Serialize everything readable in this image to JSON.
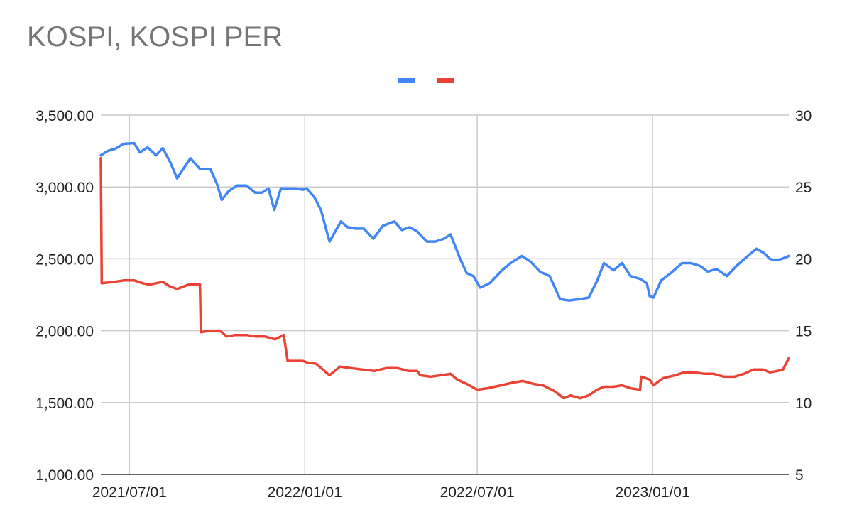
{
  "chart_data": {
    "type": "line",
    "title": "KOSPI, KOSPI PER",
    "legend_position": "top",
    "grid": true,
    "x_axis": {
      "type": "date",
      "range": [
        "2021-06-01",
        "2023-05-24"
      ],
      "tick_labels": [
        "2021/07/01",
        "2022/01/01",
        "2022/07/01",
        "2023/01/01"
      ],
      "gridlines": [
        "2021-07-01",
        "2022-01-01",
        "2022-07-01",
        "2023-01-01"
      ]
    },
    "y_axis_left": {
      "range": [
        1000,
        3500
      ],
      "tick_labels": [
        "1,000.00",
        "1,500.00",
        "2,000.00",
        "2,500.00",
        "3,000.00",
        "3,500.00"
      ]
    },
    "y_axis_right": {
      "range": [
        5,
        30
      ],
      "tick_labels": [
        "5",
        "10",
        "15",
        "20",
        "25",
        "30"
      ]
    },
    "series": [
      {
        "axis": "left",
        "color": "#4285f4",
        "points": [
          [
            "2021-06-01",
            3220
          ],
          [
            "2021-06-08",
            3250
          ],
          [
            "2021-06-16",
            3265
          ],
          [
            "2021-06-25",
            3300
          ],
          [
            "2021-07-06",
            3305
          ],
          [
            "2021-07-12",
            3240
          ],
          [
            "2021-07-20",
            3275
          ],
          [
            "2021-07-29",
            3220
          ],
          [
            "2021-08-05",
            3270
          ],
          [
            "2021-08-13",
            3170
          ],
          [
            "2021-08-20",
            3060
          ],
          [
            "2021-08-27",
            3130
          ],
          [
            "2021-09-03",
            3200
          ],
          [
            "2021-09-13",
            3125
          ],
          [
            "2021-09-24",
            3125
          ],
          [
            "2021-10-01",
            3020
          ],
          [
            "2021-10-06",
            2910
          ],
          [
            "2021-10-13",
            2970
          ],
          [
            "2021-10-22",
            3010
          ],
          [
            "2021-11-01",
            3010
          ],
          [
            "2021-11-10",
            2960
          ],
          [
            "2021-11-17",
            2960
          ],
          [
            "2021-11-24",
            2990
          ],
          [
            "2021-11-30",
            2840
          ],
          [
            "2021-12-07",
            2990
          ],
          [
            "2021-12-14",
            2990
          ],
          [
            "2021-12-22",
            2990
          ],
          [
            "2021-12-30",
            2980
          ],
          [
            "2022-01-03",
            2990
          ],
          [
            "2022-01-11",
            2930
          ],
          [
            "2022-01-18",
            2840
          ],
          [
            "2022-01-27",
            2620
          ],
          [
            "2022-02-08",
            2760
          ],
          [
            "2022-02-15",
            2720
          ],
          [
            "2022-02-23",
            2710
          ],
          [
            "2022-03-04",
            2710
          ],
          [
            "2022-03-14",
            2640
          ],
          [
            "2022-03-24",
            2730
          ],
          [
            "2022-04-05",
            2760
          ],
          [
            "2022-04-13",
            2700
          ],
          [
            "2022-04-21",
            2720
          ],
          [
            "2022-04-29",
            2690
          ],
          [
            "2022-05-09",
            2620
          ],
          [
            "2022-05-18",
            2620
          ],
          [
            "2022-05-27",
            2640
          ],
          [
            "2022-06-03",
            2670
          ],
          [
            "2022-06-13",
            2500
          ],
          [
            "2022-06-20",
            2400
          ],
          [
            "2022-06-27",
            2380
          ],
          [
            "2022-07-04",
            2300
          ],
          [
            "2022-07-14",
            2330
          ],
          [
            "2022-07-27",
            2420
          ],
          [
            "2022-08-05",
            2470
          ],
          [
            "2022-08-17",
            2520
          ],
          [
            "2022-08-26",
            2480
          ],
          [
            "2022-09-05",
            2410
          ],
          [
            "2022-09-15",
            2380
          ],
          [
            "2022-09-26",
            2220
          ],
          [
            "2022-10-05",
            2210
          ],
          [
            "2022-10-17",
            2220
          ],
          [
            "2022-10-26",
            2230
          ],
          [
            "2022-11-04",
            2350
          ],
          [
            "2022-11-11",
            2470
          ],
          [
            "2022-11-21",
            2420
          ],
          [
            "2022-11-30",
            2470
          ],
          [
            "2022-12-09",
            2380
          ],
          [
            "2022-12-19",
            2360
          ],
          [
            "2022-12-26",
            2330
          ],
          [
            "2022-12-29",
            2240
          ],
          [
            "2023-01-02",
            2230
          ],
          [
            "2023-01-10",
            2350
          ],
          [
            "2023-01-20",
            2400
          ],
          [
            "2023-02-01",
            2470
          ],
          [
            "2023-02-10",
            2470
          ],
          [
            "2023-02-20",
            2450
          ],
          [
            "2023-02-28",
            2410
          ],
          [
            "2023-03-09",
            2430
          ],
          [
            "2023-03-20",
            2380
          ],
          [
            "2023-03-30",
            2450
          ],
          [
            "2023-04-11",
            2520
          ],
          [
            "2023-04-20",
            2570
          ],
          [
            "2023-04-28",
            2540
          ],
          [
            "2023-05-04",
            2500
          ],
          [
            "2023-05-10",
            2490
          ],
          [
            "2023-05-17",
            2500
          ],
          [
            "2023-05-24",
            2520
          ]
        ]
      },
      {
        "axis": "right",
        "color": "#ea4335",
        "points": [
          [
            "2021-06-01",
            27.0
          ],
          [
            "2021-06-02",
            18.3
          ],
          [
            "2021-06-15",
            18.4
          ],
          [
            "2021-06-25",
            18.5
          ],
          [
            "2021-07-06",
            18.5
          ],
          [
            "2021-07-15",
            18.3
          ],
          [
            "2021-07-22",
            18.2
          ],
          [
            "2021-08-05",
            18.4
          ],
          [
            "2021-08-12",
            18.1
          ],
          [
            "2021-08-20",
            17.9
          ],
          [
            "2021-09-01",
            18.2
          ],
          [
            "2021-09-13",
            18.2
          ],
          [
            "2021-09-14",
            14.9
          ],
          [
            "2021-09-24",
            15.0
          ],
          [
            "2021-10-04",
            15.0
          ],
          [
            "2021-10-11",
            14.6
          ],
          [
            "2021-10-20",
            14.7
          ],
          [
            "2021-11-01",
            14.7
          ],
          [
            "2021-11-10",
            14.6
          ],
          [
            "2021-11-20",
            14.6
          ],
          [
            "2021-12-01",
            14.4
          ],
          [
            "2021-12-10",
            14.7
          ],
          [
            "2021-12-14",
            12.9
          ],
          [
            "2021-12-24",
            12.9
          ],
          [
            "2021-12-30",
            12.9
          ],
          [
            "2022-01-03",
            12.8
          ],
          [
            "2022-01-13",
            12.7
          ],
          [
            "2022-01-27",
            11.9
          ],
          [
            "2022-02-07",
            12.5
          ],
          [
            "2022-02-18",
            12.4
          ],
          [
            "2022-03-02",
            12.3
          ],
          [
            "2022-03-15",
            12.2
          ],
          [
            "2022-03-28",
            12.4
          ],
          [
            "2022-04-08",
            12.4
          ],
          [
            "2022-04-20",
            12.2
          ],
          [
            "2022-04-29",
            12.2
          ],
          [
            "2022-05-02",
            11.9
          ],
          [
            "2022-05-13",
            11.8
          ],
          [
            "2022-05-24",
            11.9
          ],
          [
            "2022-06-03",
            12.0
          ],
          [
            "2022-06-10",
            11.6
          ],
          [
            "2022-06-20",
            11.3
          ],
          [
            "2022-07-01",
            10.9
          ],
          [
            "2022-07-12",
            11.0
          ],
          [
            "2022-07-26",
            11.2
          ],
          [
            "2022-08-08",
            11.4
          ],
          [
            "2022-08-18",
            11.5
          ],
          [
            "2022-08-29",
            11.3
          ],
          [
            "2022-09-08",
            11.2
          ],
          [
            "2022-09-20",
            10.8
          ],
          [
            "2022-09-30",
            10.3
          ],
          [
            "2022-10-07",
            10.5
          ],
          [
            "2022-10-17",
            10.3
          ],
          [
            "2022-10-26",
            10.5
          ],
          [
            "2022-11-04",
            10.9
          ],
          [
            "2022-11-11",
            11.1
          ],
          [
            "2022-11-21",
            11.1
          ],
          [
            "2022-11-30",
            11.2
          ],
          [
            "2022-12-09",
            11.0
          ],
          [
            "2022-12-19",
            10.9
          ],
          [
            "2022-12-20",
            11.8
          ],
          [
            "2022-12-29",
            11.6
          ],
          [
            "2023-01-02",
            11.2
          ],
          [
            "2023-01-12",
            11.7
          ],
          [
            "2023-01-25",
            11.9
          ],
          [
            "2023-02-03",
            12.1
          ],
          [
            "2023-02-15",
            12.1
          ],
          [
            "2023-02-24",
            12.0
          ],
          [
            "2023-03-06",
            12.0
          ],
          [
            "2023-03-17",
            11.8
          ],
          [
            "2023-03-28",
            11.8
          ],
          [
            "2023-04-07",
            12.0
          ],
          [
            "2023-04-17",
            12.3
          ],
          [
            "2023-04-27",
            12.3
          ],
          [
            "2023-05-04",
            12.1
          ],
          [
            "2023-05-12",
            12.2
          ],
          [
            "2023-05-18",
            12.3
          ],
          [
            "2023-05-24",
            13.1
          ]
        ]
      }
    ]
  }
}
